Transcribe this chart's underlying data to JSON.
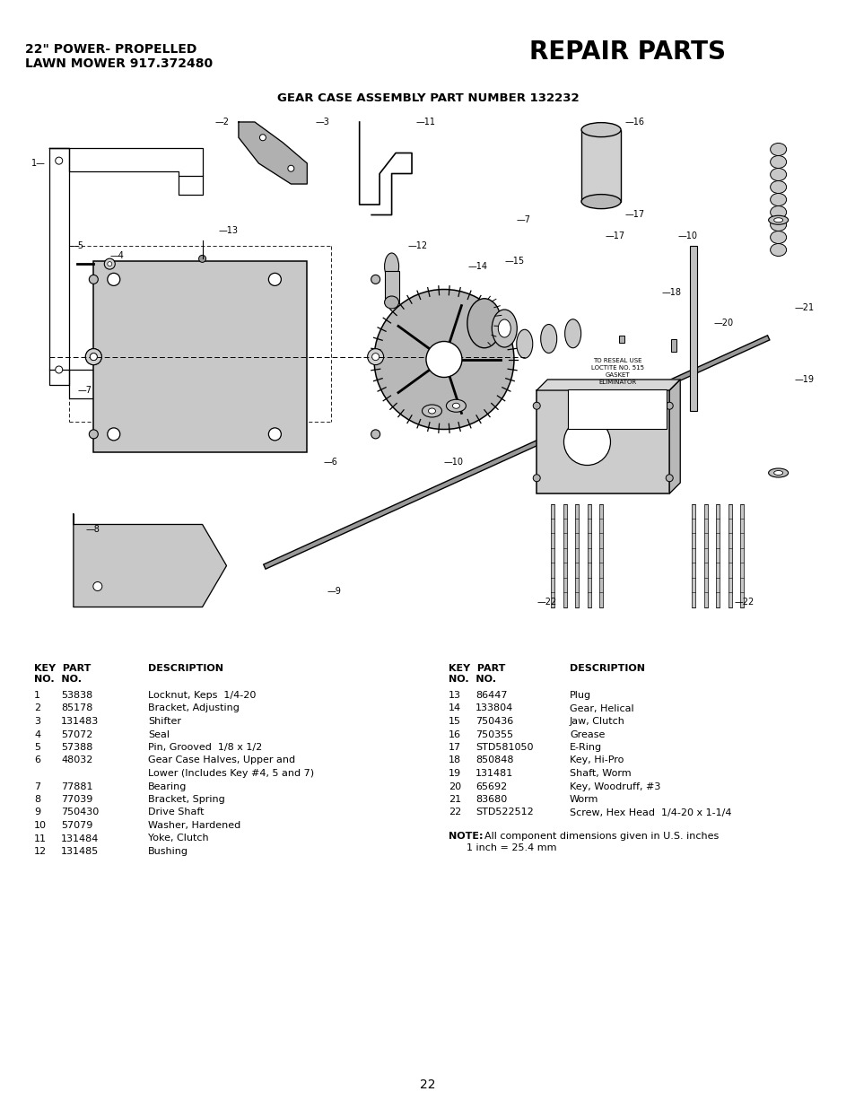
{
  "page_bg": "#ffffff",
  "title_left_line1": "22\" POWER- PROPELLED",
  "title_left_line2": "LAWN MOWER 917.372480",
  "title_right": "REPAIR PARTS",
  "diagram_title": "GEAR CASE ASSEMBLY PART NUMBER 132232",
  "parts_left": [
    [
      "1",
      "53838",
      "Locknut, Keps  1/4-20"
    ],
    [
      "2",
      "85178",
      "Bracket, Adjusting"
    ],
    [
      "3",
      "131483",
      "Shifter"
    ],
    [
      "4",
      "57072",
      "Seal"
    ],
    [
      "5",
      "57388",
      "Pin, Grooved  1/8 x 1/2"
    ],
    [
      "6",
      "48032",
      "Gear Case Halves, Upper and"
    ],
    [
      "",
      "",
      "Lower (Includes Key #4, 5 and 7)"
    ],
    [
      "7",
      "77881",
      "Bearing"
    ],
    [
      "8",
      "77039",
      "Bracket, Spring"
    ],
    [
      "9",
      "750430",
      "Drive Shaft"
    ],
    [
      "10",
      "57079",
      "Washer, Hardened"
    ],
    [
      "11",
      "131484",
      "Yoke, Clutch"
    ],
    [
      "12",
      "131485",
      "Bushing"
    ]
  ],
  "parts_right": [
    [
      "13",
      "86447",
      "Plug"
    ],
    [
      "14",
      "133804",
      "Gear, Helical"
    ],
    [
      "15",
      "750436",
      "Jaw, Clutch"
    ],
    [
      "16",
      "750355",
      "Grease"
    ],
    [
      "17",
      "STD581050",
      "E-Ring"
    ],
    [
      "18",
      "850848",
      "Key, Hi-Pro"
    ],
    [
      "19",
      "131481",
      "Shaft, Worm"
    ],
    [
      "20",
      "65692",
      "Key, Woodruff, #3"
    ],
    [
      "21",
      "83680",
      "Worm"
    ],
    [
      "22",
      "STD522512",
      "Screw, Hex Head  1/4-20 x 1-1/4"
    ]
  ],
  "note_bold": "NOTE:",
  "note_rest": "  All component dimensions given in U.S. inches",
  "note_line2": "1 inch = 25.4 mm",
  "page_number": "22",
  "loctite_text": "TO RESEAL USE\nLOCTITE NO. 515\nGASKET\nELIMINATOR"
}
